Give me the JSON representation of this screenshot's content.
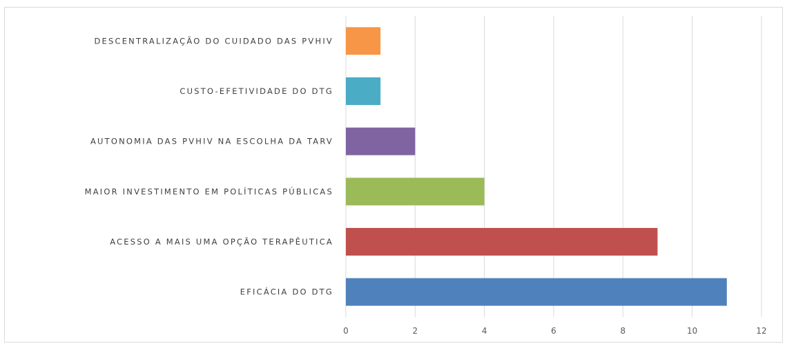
{
  "chart_data": {
    "type": "bar",
    "orientation": "horizontal",
    "title": "",
    "xlabel": "",
    "ylabel": "",
    "categories": [
      "EFICÁCIA DO DTG",
      "ACESSO A MAIS UMA OPÇÃO TERAPÊUTICA",
      "MAIOR INVESTIMENTO EM POLÍTICAS PÚBLICAS",
      "AUTONOMIA DAS PVHIV NA ESCOLHA DA TARV",
      "CUSTO-EFETIVIDADE DO DTG",
      "DESCENTRALIZAÇÃO DO CUIDADO DAS PVHIV"
    ],
    "values": [
      11,
      9,
      4,
      2,
      1,
      1
    ],
    "colors": [
      "#4f81bd",
      "#c0504d",
      "#9bbb59",
      "#8064a2",
      "#4bacc6",
      "#f79646"
    ],
    "xlim": [
      0,
      12
    ],
    "xticks": [
      "0",
      "2",
      "4",
      "6",
      "8",
      "10",
      "12"
    ],
    "grid": true,
    "legend": "none"
  }
}
